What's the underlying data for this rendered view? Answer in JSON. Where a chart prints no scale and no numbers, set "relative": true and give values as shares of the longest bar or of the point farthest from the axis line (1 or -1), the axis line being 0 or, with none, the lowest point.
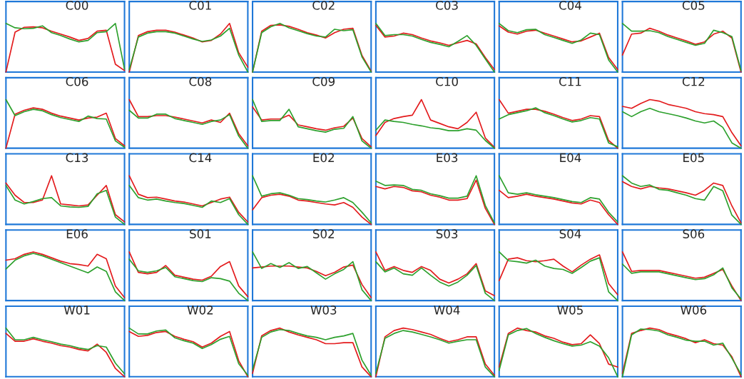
{
  "chart_data": [
    {
      "type": "line",
      "title": "C00",
      "relative": true,
      "categories": [
        null,
        null,
        null,
        null,
        null,
        null,
        null,
        null,
        null,
        null,
        null,
        null,
        null,
        null
      ],
      "series": [
        {
          "color": "#e31a1c",
          "values": [
            0,
            0.82,
            0.92,
            0.93,
            0.91,
            0.84,
            0.78,
            0.72,
            0.65,
            0.69,
            0.84,
            0.86,
            0.16,
            0.03
          ]
        },
        {
          "color": "#2ca02c",
          "values": [
            1,
            0.91,
            0.89,
            0.9,
            0.95,
            0.81,
            0.75,
            0.68,
            0.62,
            0.65,
            0.81,
            0.83,
            1,
            0.06
          ]
        }
      ]
    },
    {
      "type": "line",
      "title": "C01",
      "relative": true,
      "categories": [
        null,
        null,
        null,
        null,
        null,
        null,
        null,
        null,
        null,
        null,
        null,
        null,
        null,
        null
      ],
      "series": [
        {
          "color": "#e31a1c",
          "values": [
            0,
            0.75,
            0.83,
            0.86,
            0.86,
            0.82,
            0.76,
            0.7,
            0.62,
            0.65,
            0.78,
            1,
            0.4,
            0.1
          ]
        },
        {
          "color": "#2ca02c",
          "values": [
            0.05,
            0.72,
            0.8,
            0.83,
            0.83,
            0.8,
            0.74,
            0.68,
            0.63,
            0.66,
            0.74,
            0.9,
            0.35,
            0
          ]
        }
      ]
    },
    {
      "type": "line",
      "title": "C02",
      "relative": true,
      "categories": [
        null,
        null,
        null,
        null,
        null,
        null,
        null,
        null,
        null,
        null,
        null,
        null,
        null,
        null
      ],
      "series": [
        {
          "color": "#e31a1c",
          "values": [
            0,
            0.84,
            0.96,
            0.97,
            0.94,
            0.88,
            0.81,
            0.76,
            0.7,
            0.81,
            0.88,
            0.9,
            0.34,
            0.02
          ]
        },
        {
          "color": "#2ca02c",
          "values": [
            0,
            0.81,
            0.93,
            1,
            0.91,
            0.85,
            0.79,
            0.74,
            0.72,
            0.88,
            0.85,
            0.87,
            0.31,
            0
          ]
        }
      ]
    },
    {
      "type": "line",
      "title": "C03",
      "relative": true,
      "categories": [
        null,
        null,
        null,
        null,
        null,
        null,
        null,
        null,
        null,
        null,
        null,
        null,
        null,
        null
      ],
      "series": [
        {
          "color": "#e31a1c",
          "values": [
            0.96,
            0.72,
            0.74,
            0.8,
            0.77,
            0.7,
            0.64,
            0.6,
            0.55,
            0.6,
            0.65,
            0.58,
            0.3,
            0.05
          ]
        },
        {
          "color": "#2ca02c",
          "values": [
            1,
            0.75,
            0.77,
            0.77,
            0.74,
            0.67,
            0.61,
            0.57,
            0.52,
            0.63,
            0.75,
            0.55,
            0.27,
            0
          ]
        }
      ]
    },
    {
      "type": "line",
      "title": "C04",
      "relative": true,
      "categories": [
        null,
        null,
        null,
        null,
        null,
        null,
        null,
        null,
        null,
        null,
        null,
        null,
        null,
        null
      ],
      "series": [
        {
          "color": "#e31a1c",
          "values": [
            0.95,
            0.82,
            0.78,
            0.84,
            0.86,
            0.8,
            0.74,
            0.68,
            0.62,
            0.64,
            0.72,
            0.8,
            0.3,
            0.05
          ]
        },
        {
          "color": "#2ca02c",
          "values": [
            1,
            0.85,
            0.81,
            0.87,
            0.88,
            0.77,
            0.71,
            0.65,
            0.59,
            0.66,
            0.8,
            0.77,
            0.25,
            0
          ]
        }
      ]
    },
    {
      "type": "line",
      "title": "C05",
      "relative": true,
      "categories": [
        null,
        null,
        null,
        null,
        null,
        null,
        null,
        null,
        null,
        null,
        null,
        null,
        null,
        null
      ],
      "series": [
        {
          "color": "#e31a1c",
          "values": [
            0.35,
            0.78,
            0.8,
            0.9,
            0.84,
            0.76,
            0.7,
            0.64,
            0.57,
            0.62,
            0.78,
            0.84,
            0.7,
            0
          ]
        },
        {
          "color": "#2ca02c",
          "values": [
            1,
            0.84,
            0.84,
            0.85,
            0.81,
            0.73,
            0.67,
            0.61,
            0.55,
            0.59,
            0.86,
            0.81,
            0.73,
            0.03
          ]
        }
      ]
    },
    {
      "type": "line",
      "title": "C06",
      "relative": true,
      "categories": [
        null,
        null,
        null,
        null,
        null,
        null,
        null,
        null,
        null,
        null,
        null,
        null,
        null,
        null
      ],
      "series": [
        {
          "color": "#e31a1c",
          "values": [
            0,
            0.7,
            0.78,
            0.83,
            0.8,
            0.72,
            0.66,
            0.62,
            0.58,
            0.62,
            0.64,
            0.72,
            0.2,
            0.05
          ]
        },
        {
          "color": "#2ca02c",
          "values": [
            1,
            0.67,
            0.75,
            0.8,
            0.77,
            0.69,
            0.63,
            0.59,
            0.55,
            0.66,
            0.61,
            0.6,
            0.15,
            0.02
          ]
        }
      ]
    },
    {
      "type": "line",
      "title": "C08",
      "relative": true,
      "categories": [
        null,
        null,
        null,
        null,
        null,
        null,
        null,
        null,
        null,
        null,
        null,
        null,
        null,
        null
      ],
      "series": [
        {
          "color": "#e31a1c",
          "values": [
            1,
            0.65,
            0.65,
            0.67,
            0.67,
            0.64,
            0.6,
            0.56,
            0.52,
            0.58,
            0.53,
            0.72,
            0.3,
            0.05
          ]
        },
        {
          "color": "#2ca02c",
          "values": [
            0.78,
            0.62,
            0.62,
            0.7,
            0.7,
            0.61,
            0.57,
            0.53,
            0.49,
            0.55,
            0.58,
            0.69,
            0.25,
            0
          ]
        }
      ]
    },
    {
      "type": "line",
      "title": "C09",
      "relative": true,
      "categories": [
        null,
        null,
        null,
        null,
        null,
        null,
        null,
        null,
        null,
        null,
        null,
        null,
        null,
        null
      ],
      "series": [
        {
          "color": "#e31a1c",
          "values": [
            0.85,
            0.58,
            0.6,
            0.6,
            0.68,
            0.48,
            0.44,
            0.4,
            0.37,
            0.42,
            0.45,
            0.62,
            0.2,
            0.03
          ]
        },
        {
          "color": "#2ca02c",
          "values": [
            1,
            0.55,
            0.57,
            0.57,
            0.8,
            0.44,
            0.4,
            0.36,
            0.33,
            0.39,
            0.41,
            0.65,
            0.15,
            0
          ]
        }
      ]
    },
    {
      "type": "line",
      "title": "C10",
      "relative": true,
      "categories": [
        null,
        null,
        null,
        null,
        null,
        null,
        null,
        null,
        null,
        null,
        null,
        null,
        null,
        null
      ],
      "series": [
        {
          "color": "#e31a1c",
          "values": [
            0.26,
            0.53,
            0.61,
            0.65,
            0.68,
            1,
            0.58,
            0.51,
            0.44,
            0.4,
            0.53,
            0.74,
            0.21,
            0.02
          ]
        },
        {
          "color": "#2ca02c",
          "values": [
            0.37,
            0.58,
            0.55,
            0.53,
            0.49,
            0.46,
            0.42,
            0.4,
            0.36,
            0.36,
            0.4,
            0.37,
            0.16,
            0
          ]
        }
      ]
    },
    {
      "type": "line",
      "title": "C11",
      "relative": true,
      "categories": [
        null,
        null,
        null,
        null,
        null,
        null,
        null,
        null,
        null,
        null,
        null,
        null,
        null,
        null
      ],
      "series": [
        {
          "color": "#e31a1c",
          "values": [
            1,
            0.72,
            0.76,
            0.8,
            0.8,
            0.76,
            0.7,
            0.63,
            0.57,
            0.6,
            0.67,
            0.65,
            0.16,
            0
          ]
        },
        {
          "color": "#2ca02c",
          "values": [
            0.6,
            0.69,
            0.73,
            0.77,
            0.83,
            0.73,
            0.67,
            0.6,
            0.54,
            0.57,
            0.63,
            0.6,
            0.11,
            0.03
          ]
        }
      ]
    },
    {
      "type": "line",
      "title": "C12",
      "relative": true,
      "categories": [
        null,
        null,
        null,
        null,
        null,
        null,
        null,
        null,
        null,
        null,
        null,
        null,
        null,
        null
      ],
      "series": [
        {
          "color": "#e31a1c",
          "values": [
            0.86,
            0.82,
            0.92,
            1,
            0.97,
            0.9,
            0.86,
            0.82,
            0.75,
            0.71,
            0.69,
            0.65,
            0.32,
            0.05
          ]
        },
        {
          "color": "#2ca02c",
          "values": [
            0.75,
            0.65,
            0.75,
            0.82,
            0.75,
            0.71,
            0.67,
            0.62,
            0.56,
            0.52,
            0.56,
            0.43,
            0.11,
            0
          ]
        }
      ]
    },
    {
      "type": "line",
      "title": "C13",
      "relative": true,
      "categories": [
        null,
        null,
        null,
        null,
        null,
        null,
        null,
        null,
        null,
        null,
        null,
        null,
        null,
        null
      ],
      "series": [
        {
          "color": "#e31a1c",
          "values": [
            0.85,
            0.6,
            0.45,
            0.45,
            0.5,
            1,
            0.42,
            0.4,
            0.38,
            0.4,
            0.6,
            0.8,
            0.2,
            0.05
          ]
        },
        {
          "color": "#2ca02c",
          "values": [
            0.8,
            0.5,
            0.42,
            0.47,
            0.53,
            0.55,
            0.38,
            0.36,
            0.35,
            0.37,
            0.63,
            0.7,
            0.15,
            0
          ]
        }
      ]
    },
    {
      "type": "line",
      "title": "C14",
      "relative": true,
      "categories": [
        null,
        null,
        null,
        null,
        null,
        null,
        null,
        null,
        null,
        null,
        null,
        null,
        null,
        null
      ],
      "series": [
        {
          "color": "#e31a1c",
          "values": [
            1,
            0.62,
            0.55,
            0.56,
            0.52,
            0.48,
            0.46,
            0.42,
            0.38,
            0.45,
            0.52,
            0.56,
            0.25,
            0.05
          ]
        },
        {
          "color": "#2ca02c",
          "values": [
            0.8,
            0.55,
            0.5,
            0.52,
            0.48,
            0.45,
            0.43,
            0.39,
            0.35,
            0.48,
            0.45,
            0.53,
            0.2,
            0
          ]
        }
      ]
    },
    {
      "type": "line",
      "title": "E02",
      "relative": true,
      "categories": [
        null,
        null,
        null,
        null,
        null,
        null,
        null,
        null,
        null,
        null,
        null,
        null,
        null,
        null
      ],
      "series": [
        {
          "color": "#e31a1c",
          "values": [
            0.3,
            0.55,
            0.6,
            0.62,
            0.58,
            0.5,
            0.48,
            0.45,
            0.42,
            0.4,
            0.45,
            0.35,
            0.15,
            0
          ]
        },
        {
          "color": "#2ca02c",
          "values": [
            1,
            0.58,
            0.63,
            0.65,
            0.6,
            0.53,
            0.51,
            0.48,
            0.46,
            0.5,
            0.55,
            0.45,
            0.25,
            0.03
          ]
        }
      ]
    },
    {
      "type": "line",
      "title": "E03",
      "relative": true,
      "categories": [
        null,
        null,
        null,
        null,
        null,
        null,
        null,
        null,
        null,
        null,
        null,
        null,
        null,
        null
      ],
      "series": [
        {
          "color": "#e31a1c",
          "values": [
            0.78,
            0.73,
            0.78,
            0.76,
            0.69,
            0.67,
            0.6,
            0.56,
            0.5,
            0.5,
            0.53,
            0.91,
            0.33,
            0
          ]
        },
        {
          "color": "#2ca02c",
          "values": [
            0.89,
            0.8,
            0.81,
            0.8,
            0.72,
            0.7,
            0.63,
            0.59,
            0.54,
            0.54,
            0.58,
            1,
            0.39,
            0.03
          ]
        }
      ]
    },
    {
      "type": "line",
      "title": "E04",
      "relative": true,
      "categories": [
        null,
        null,
        null,
        null,
        null,
        null,
        null,
        null,
        null,
        null,
        null,
        null,
        null,
        null
      ],
      "series": [
        {
          "color": "#e31a1c",
          "values": [
            0.7,
            0.55,
            0.58,
            0.62,
            0.58,
            0.55,
            0.52,
            0.48,
            0.44,
            0.42,
            0.5,
            0.45,
            0.2,
            0
          ]
        },
        {
          "color": "#2ca02c",
          "values": [
            1,
            0.65,
            0.62,
            0.65,
            0.61,
            0.58,
            0.55,
            0.51,
            0.47,
            0.45,
            0.55,
            0.52,
            0.25,
            0.05
          ]
        }
      ]
    },
    {
      "type": "line",
      "title": "E05",
      "relative": true,
      "categories": [
        null,
        null,
        null,
        null,
        null,
        null,
        null,
        null,
        null,
        null,
        null,
        null,
        null,
        null
      ],
      "series": [
        {
          "color": "#e31a1c",
          "values": [
            0.88,
            0.78,
            0.73,
            0.78,
            0.75,
            0.73,
            0.69,
            0.65,
            0.6,
            0.7,
            0.85,
            0.8,
            0.38,
            0.03
          ]
        },
        {
          "color": "#2ca02c",
          "values": [
            1,
            0.85,
            0.78,
            0.81,
            0.72,
            0.7,
            0.65,
            0.6,
            0.53,
            0.5,
            0.78,
            0.69,
            0.19,
            0
          ]
        }
      ]
    },
    {
      "type": "line",
      "title": "E06",
      "relative": true,
      "categories": [
        null,
        null,
        null,
        null,
        null,
        null,
        null,
        null,
        null,
        null,
        null,
        null,
        null,
        null
      ],
      "series": [
        {
          "color": "#e31a1c",
          "values": [
            0.83,
            0.86,
            0.95,
            1,
            0.95,
            0.88,
            0.81,
            0.76,
            0.74,
            0.71,
            0.95,
            0.86,
            0.3,
            0.06
          ]
        },
        {
          "color": "#2ca02c",
          "values": [
            0.65,
            0.83,
            0.92,
            0.97,
            0.92,
            0.85,
            0.78,
            0.71,
            0.64,
            0.57,
            0.69,
            0.6,
            0.18,
            0
          ]
        }
      ]
    },
    {
      "type": "line",
      "title": "S01",
      "relative": true,
      "categories": [
        null,
        null,
        null,
        null,
        null,
        null,
        null,
        null,
        null,
        null,
        null,
        null,
        null,
        null
      ],
      "series": [
        {
          "color": "#e31a1c",
          "values": [
            1,
            0.58,
            0.55,
            0.58,
            0.72,
            0.52,
            0.48,
            0.44,
            0.42,
            0.5,
            0.7,
            0.8,
            0.3,
            0.08
          ]
        },
        {
          "color": "#2ca02c",
          "values": [
            0.85,
            0.61,
            0.58,
            0.61,
            0.68,
            0.49,
            0.45,
            0.41,
            0.39,
            0.47,
            0.45,
            0.4,
            0.15,
            0
          ]
        }
      ]
    },
    {
      "type": "line",
      "title": "S02",
      "relative": true,
      "categories": [
        null,
        null,
        null,
        null,
        null,
        null,
        null,
        null,
        null,
        null,
        null,
        null,
        null,
        null
      ],
      "series": [
        {
          "color": "#e31a1c",
          "values": [
            0.67,
            0.69,
            0.71,
            0.71,
            0.71,
            0.69,
            0.67,
            0.6,
            0.51,
            0.58,
            0.69,
            0.73,
            0.33,
            0.06
          ]
        },
        {
          "color": "#2ca02c",
          "values": [
            1,
            0.66,
            0.76,
            0.68,
            0.78,
            0.66,
            0.7,
            0.57,
            0.44,
            0.55,
            0.64,
            0.8,
            0.22,
            0
          ]
        }
      ]
    },
    {
      "type": "line",
      "title": "S03",
      "relative": true,
      "categories": [
        null,
        null,
        null,
        null,
        null,
        null,
        null,
        null,
        null,
        null,
        null,
        null,
        null,
        null
      ],
      "series": [
        {
          "color": "#e31a1c",
          "values": [
            1,
            0.62,
            0.7,
            0.62,
            0.58,
            0.7,
            0.62,
            0.44,
            0.36,
            0.44,
            0.55,
            0.76,
            0.2,
            0.1
          ]
        },
        {
          "color": "#2ca02c",
          "values": [
            0.8,
            0.59,
            0.67,
            0.55,
            0.52,
            0.67,
            0.52,
            0.38,
            0.3,
            0.38,
            0.52,
            0.72,
            0.15,
            0
          ]
        }
      ]
    },
    {
      "type": "line",
      "title": "S04",
      "relative": true,
      "categories": [
        null,
        null,
        null,
        null,
        null,
        null,
        null,
        null,
        null,
        null,
        null,
        null,
        null,
        null
      ],
      "series": [
        {
          "color": "#e31a1c",
          "values": [
            0.41,
            0.85,
            0.88,
            0.82,
            0.8,
            0.82,
            0.85,
            0.71,
            0.59,
            0.73,
            0.85,
            0.94,
            0.35,
            0.12
          ]
        },
        {
          "color": "#2ca02c",
          "values": [
            1,
            0.82,
            0.8,
            0.77,
            0.83,
            0.71,
            0.66,
            0.64,
            0.56,
            0.68,
            0.81,
            0.88,
            0.18,
            0
          ]
        }
      ]
    },
    {
      "type": "line",
      "title": "S06",
      "relative": true,
      "categories": [
        null,
        null,
        null,
        null,
        null,
        null,
        null,
        null,
        null,
        null,
        null,
        null,
        null,
        null
      ],
      "series": [
        {
          "color": "#e31a1c",
          "values": [
            1,
            0.6,
            0.62,
            0.62,
            0.62,
            0.58,
            0.54,
            0.5,
            0.46,
            0.48,
            0.56,
            0.64,
            0.3,
            0
          ]
        },
        {
          "color": "#2ca02c",
          "values": [
            0.75,
            0.56,
            0.59,
            0.59,
            0.59,
            0.55,
            0.51,
            0.47,
            0.43,
            0.45,
            0.53,
            0.67,
            0.26,
            0.03
          ]
        }
      ]
    },
    {
      "type": "line",
      "title": "W01",
      "relative": true,
      "categories": [
        null,
        null,
        null,
        null,
        null,
        null,
        null,
        null,
        null,
        null,
        null,
        null,
        null,
        null
      ],
      "series": [
        {
          "color": "#e31a1c",
          "values": [
            0.89,
            0.73,
            0.73,
            0.78,
            0.73,
            0.69,
            0.64,
            0.61,
            0.56,
            0.53,
            0.67,
            0.5,
            0.17,
            0
          ]
        },
        {
          "color": "#2ca02c",
          "values": [
            1,
            0.76,
            0.76,
            0.81,
            0.76,
            0.72,
            0.67,
            0.64,
            0.59,
            0.56,
            0.64,
            0.61,
            0.28,
            0.06
          ]
        }
      ]
    },
    {
      "type": "line",
      "title": "W02",
      "relative": true,
      "categories": [
        null,
        null,
        null,
        null,
        null,
        null,
        null,
        null,
        null,
        null,
        null,
        null,
        null,
        null
      ],
      "series": [
        {
          "color": "#e31a1c",
          "values": [
            0.93,
            0.83,
            0.85,
            0.91,
            0.93,
            0.83,
            0.77,
            0.72,
            0.61,
            0.69,
            0.83,
            0.93,
            0.33,
            0
          ]
        },
        {
          "color": "#2ca02c",
          "values": [
            1,
            0.88,
            0.88,
            0.94,
            0.96,
            0.8,
            0.74,
            0.69,
            0.58,
            0.66,
            0.77,
            0.83,
            0.27,
            0.03
          ]
        }
      ]
    },
    {
      "type": "line",
      "title": "W03",
      "relative": true,
      "categories": [
        null,
        null,
        null,
        null,
        null,
        null,
        null,
        null,
        null,
        null,
        null,
        null,
        null,
        null
      ],
      "series": [
        {
          "color": "#e31a1c",
          "values": [
            0.07,
            0.84,
            0.95,
            1,
            0.92,
            0.86,
            0.81,
            0.76,
            0.68,
            0.68,
            0.7,
            0.7,
            0.2,
            0
          ]
        },
        {
          "color": "#2ca02c",
          "values": [
            0.14,
            0.81,
            0.92,
            0.97,
            0.95,
            0.89,
            0.84,
            0.81,
            0.76,
            0.81,
            0.84,
            0.89,
            0.34,
            0.03
          ]
        }
      ]
    },
    {
      "type": "line",
      "title": "W04",
      "relative": true,
      "categories": [
        null,
        null,
        null,
        null,
        null,
        null,
        null,
        null,
        null,
        null,
        null,
        null,
        null,
        null
      ],
      "series": [
        {
          "color": "#e31a1c",
          "values": [
            0,
            0.82,
            0.95,
            1,
            0.97,
            0.92,
            0.87,
            0.79,
            0.72,
            0.76,
            0.82,
            0.82,
            0.26,
            0.03
          ]
        },
        {
          "color": "#2ca02c",
          "values": [
            0.07,
            0.79,
            0.89,
            0.95,
            0.92,
            0.87,
            0.82,
            0.76,
            0.69,
            0.73,
            0.76,
            0.76,
            0.2,
            0
          ]
        }
      ]
    },
    {
      "type": "line",
      "title": "W05",
      "relative": true,
      "categories": [
        null,
        null,
        null,
        null,
        null,
        null,
        null,
        null,
        null,
        null,
        null,
        null,
        null,
        null
      ],
      "series": [
        {
          "color": "#e31a1c",
          "values": [
            0.2,
            0.89,
            1,
            0.95,
            0.92,
            0.84,
            0.79,
            0.71,
            0.66,
            0.68,
            0.86,
            0.68,
            0.26,
            0.2
          ]
        },
        {
          "color": "#2ca02c",
          "values": [
            0.13,
            0.86,
            0.95,
            0.99,
            0.89,
            0.81,
            0.74,
            0.68,
            0.63,
            0.65,
            0.72,
            0.63,
            0.39,
            0
          ]
        }
      ]
    },
    {
      "type": "line",
      "title": "W06",
      "relative": true,
      "categories": [
        null,
        null,
        null,
        null,
        null,
        null,
        null,
        null,
        null,
        null,
        null,
        null,
        null,
        null
      ],
      "series": [
        {
          "color": "#e31a1c",
          "values": [
            0.07,
            0.89,
            0.95,
            1,
            0.97,
            0.89,
            0.84,
            0.78,
            0.7,
            0.76,
            0.68,
            0.65,
            0.41,
            0
          ]
        },
        {
          "color": "#2ca02c",
          "values": [
            0,
            0.86,
            0.98,
            0.97,
            0.94,
            0.86,
            0.81,
            0.75,
            0.73,
            0.73,
            0.65,
            0.69,
            0.38,
            0.05
          ]
        }
      ]
    }
  ]
}
